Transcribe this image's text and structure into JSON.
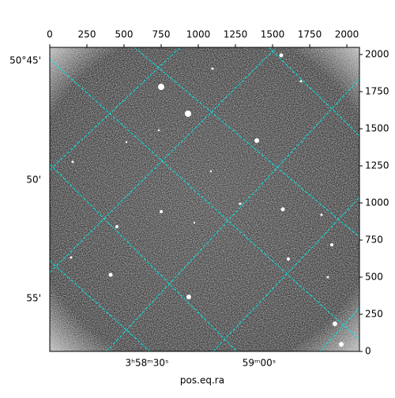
{
  "chart_data": {
    "type": "image",
    "xlabel": "pos.eq.ra",
    "xlim": [
      0,
      2085
    ],
    "ylim": [
      0,
      2048
    ],
    "xticks": [
      0,
      250,
      500,
      750,
      1000,
      1250,
      1500,
      1750,
      2000
    ],
    "yticks": [
      0,
      250,
      500,
      750,
      1000,
      1250,
      1500,
      1750,
      2000
    ],
    "world_x_ticks": [
      "3ʰ58ᵐ30ˢ",
      "59ᵐ00ˢ"
    ],
    "world_y_ticks": [
      "50°45'",
      "50'",
      "55'"
    ],
    "grid_color": "#00e5e5"
  }
}
